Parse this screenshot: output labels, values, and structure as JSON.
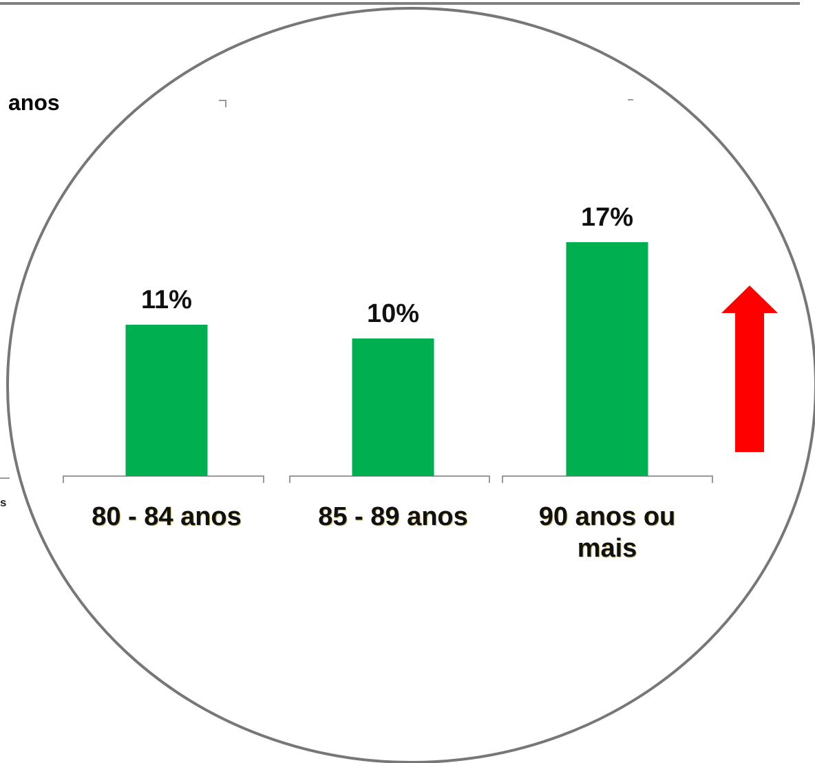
{
  "chart_data": {
    "type": "bar",
    "categories": [
      "80 - 84 anos",
      "85 - 89 anos",
      "90 anos ou mais"
    ],
    "values": [
      11,
      10,
      17
    ],
    "value_labels": [
      "11%",
      "10%",
      "17%"
    ],
    "color": "#00b050",
    "annotations": [
      "anos",
      "s"
    ]
  }
}
